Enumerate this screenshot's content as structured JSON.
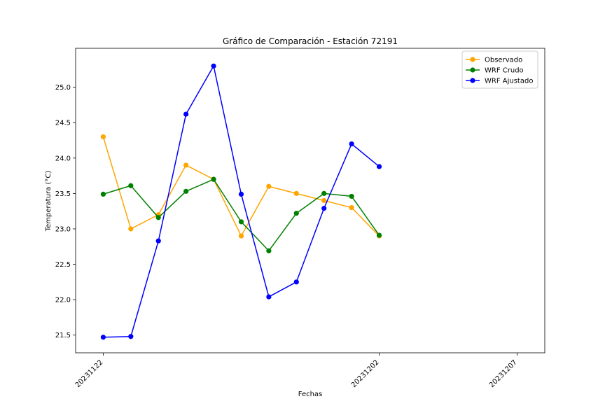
{
  "chart_data": {
    "type": "line",
    "title": "Gráfico de Comparación - Estación 72191",
    "xlabel": "Fechas",
    "ylabel": "Temperatura (°C)",
    "x": [
      "20231122",
      "20231123",
      "20231124",
      "20231125",
      "20231126",
      "20231127",
      "20231128",
      "20231129",
      "20231130",
      "20231201",
      "20231202"
    ],
    "xlim": [
      "20231121",
      "20231208"
    ],
    "x_ticks": [
      "20231122",
      "20231202",
      "20231207"
    ],
    "ylim": [
      21.25,
      25.55
    ],
    "y_ticks": [
      "21.5",
      "22.0",
      "22.5",
      "23.0",
      "23.5",
      "24.0",
      "24.5",
      "25.0"
    ],
    "grid": false,
    "legend_position": "top-right",
    "series": [
      {
        "name": "Observado",
        "color": "#ffa500",
        "values": [
          24.3,
          23.0,
          23.2,
          23.9,
          23.7,
          22.9,
          23.6,
          23.5,
          23.4,
          23.3,
          22.9
        ]
      },
      {
        "name": "WRF Crudo",
        "color": "#008000",
        "values": [
          23.49,
          23.61,
          23.16,
          23.53,
          23.7,
          23.1,
          22.69,
          23.22,
          23.5,
          23.46,
          22.91
        ]
      },
      {
        "name": "WRF Ajustado",
        "color": "#0000ff",
        "values": [
          21.47,
          21.48,
          22.83,
          24.62,
          25.3,
          23.49,
          22.04,
          22.25,
          23.29,
          24.2,
          23.88
        ]
      }
    ]
  }
}
